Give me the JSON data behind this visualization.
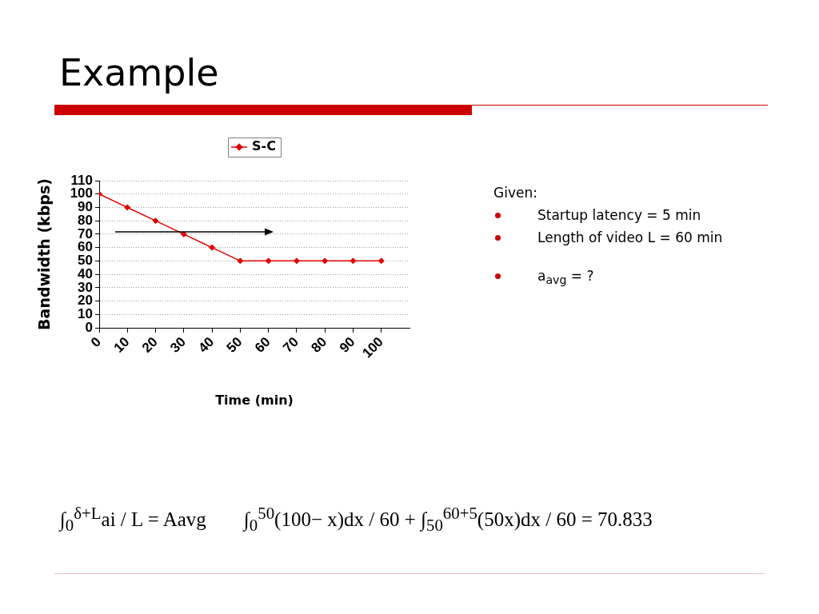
{
  "chart_data": {
    "type": "line",
    "title": "Example",
    "xlabel": "Time (min)",
    "ylabel": "Bandwidth (kbps)",
    "x": [
      0,
      10,
      20,
      30,
      40,
      50,
      60,
      70,
      80,
      90,
      100
    ],
    "series": [
      {
        "name": "S-C",
        "color": "#e00000",
        "values": [
          100,
          90,
          80,
          70,
          60,
          50,
          50,
          50,
          50,
          50,
          50
        ]
      }
    ],
    "xlim": [
      0,
      110
    ],
    "xticks": [
      0,
      10,
      20,
      30,
      40,
      50,
      60,
      70,
      80,
      90,
      100
    ],
    "ylim": [
      0,
      110
    ],
    "yticks": [
      0,
      10,
      20,
      30,
      40,
      50,
      60,
      70,
      80,
      90,
      100,
      110
    ],
    "grid": "y",
    "legend": "top",
    "marker": "diamond",
    "line_style": "solid",
    "annotations": [
      "Given:",
      "Startup latency = 5 min",
      "Length of video L = 60 min",
      "a$_{avg}$ = ?",
      "∫$_{0}$$^{δ+L}$ai / L = Aavg",
      "∫$_{0}$$^{50}$(100− x)dx / 60 + ∫$_{50}$$^{60+5}$(50x)dx / 60 = 70.833"
    ]
  }
}
